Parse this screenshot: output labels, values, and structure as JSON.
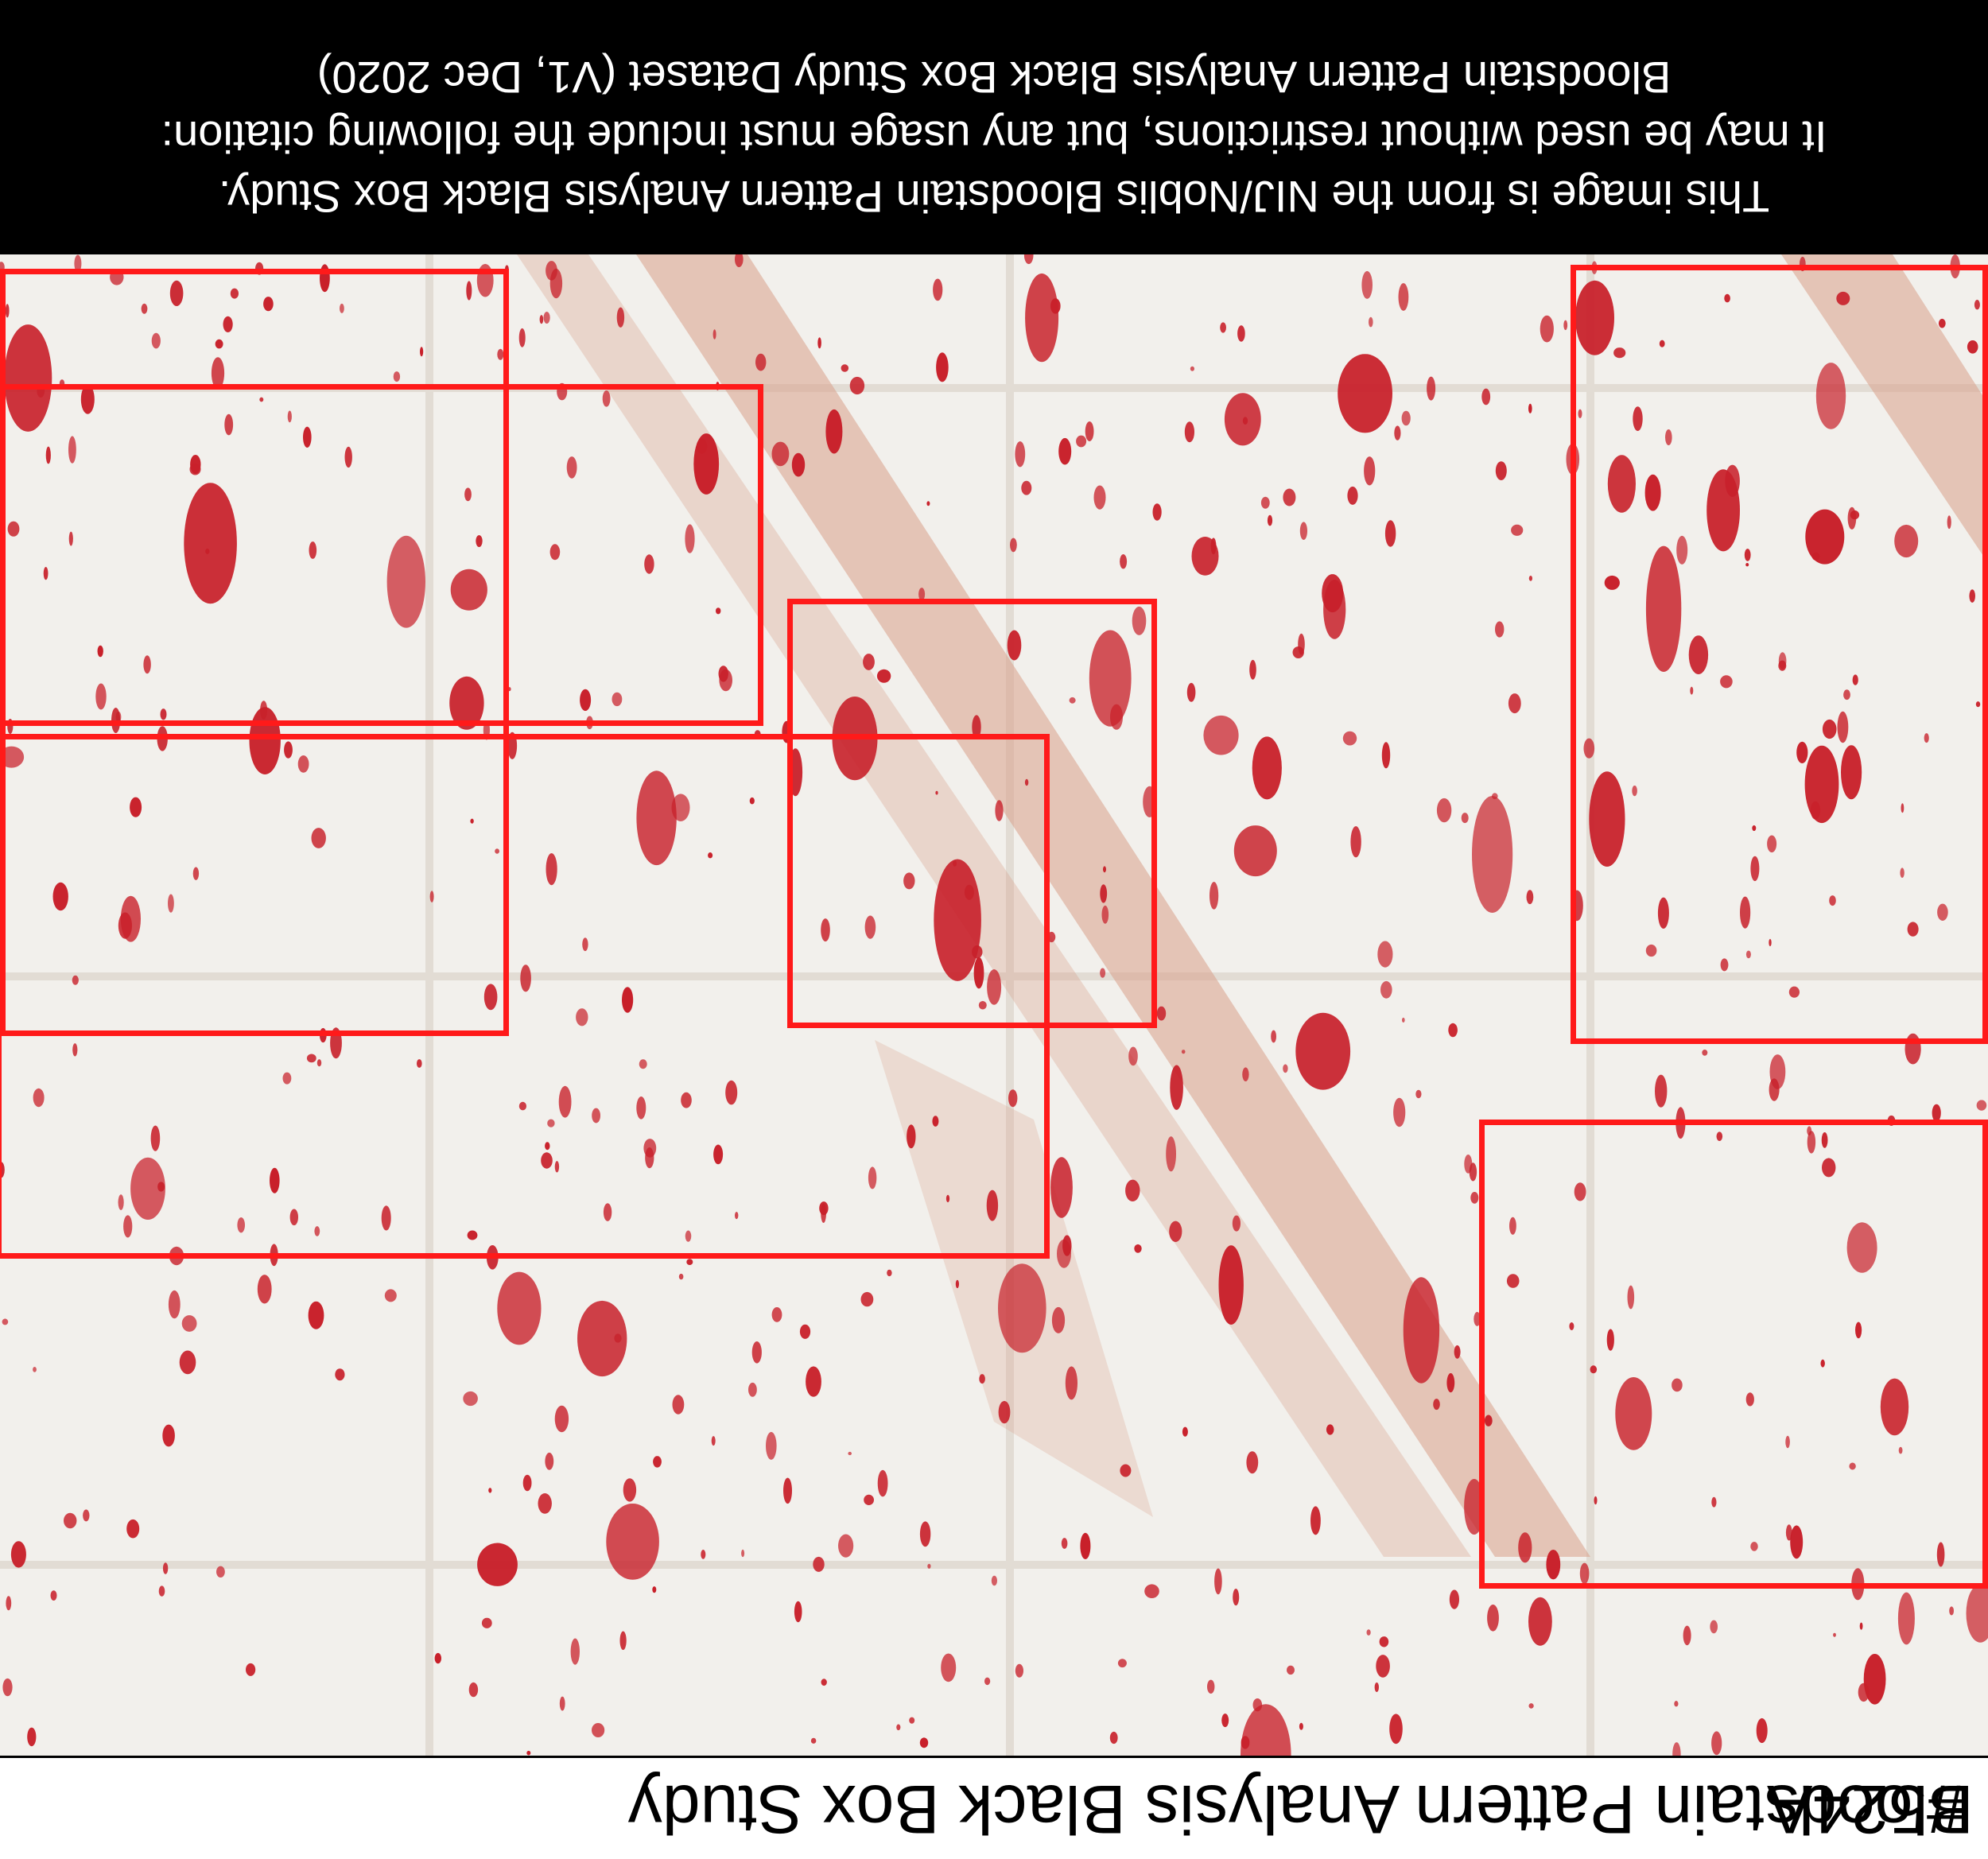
{
  "footer": {
    "title": "Bloodstain Pattern Analysis Black Box Study",
    "case_id": "#524A"
  },
  "citation": {
    "line1": "This image is from the NIJ/Noblis Bloodstain Pattern Analysis Black Box Study.",
    "line2": "It may be used without restrictions, but any usage must include the following citation:",
    "line3": "Bloodstain Pattern Analysis Black Box Study Dataset (V1, Dec 2020)"
  },
  "colors": {
    "highlight_box": "#ff1a1a",
    "blood": "#c8202a",
    "smear": "#d9a08a",
    "background": "#f2f0ec"
  },
  "image": {
    "orientation": "rotated 180 degrees",
    "highlight_box_count": 6
  }
}
